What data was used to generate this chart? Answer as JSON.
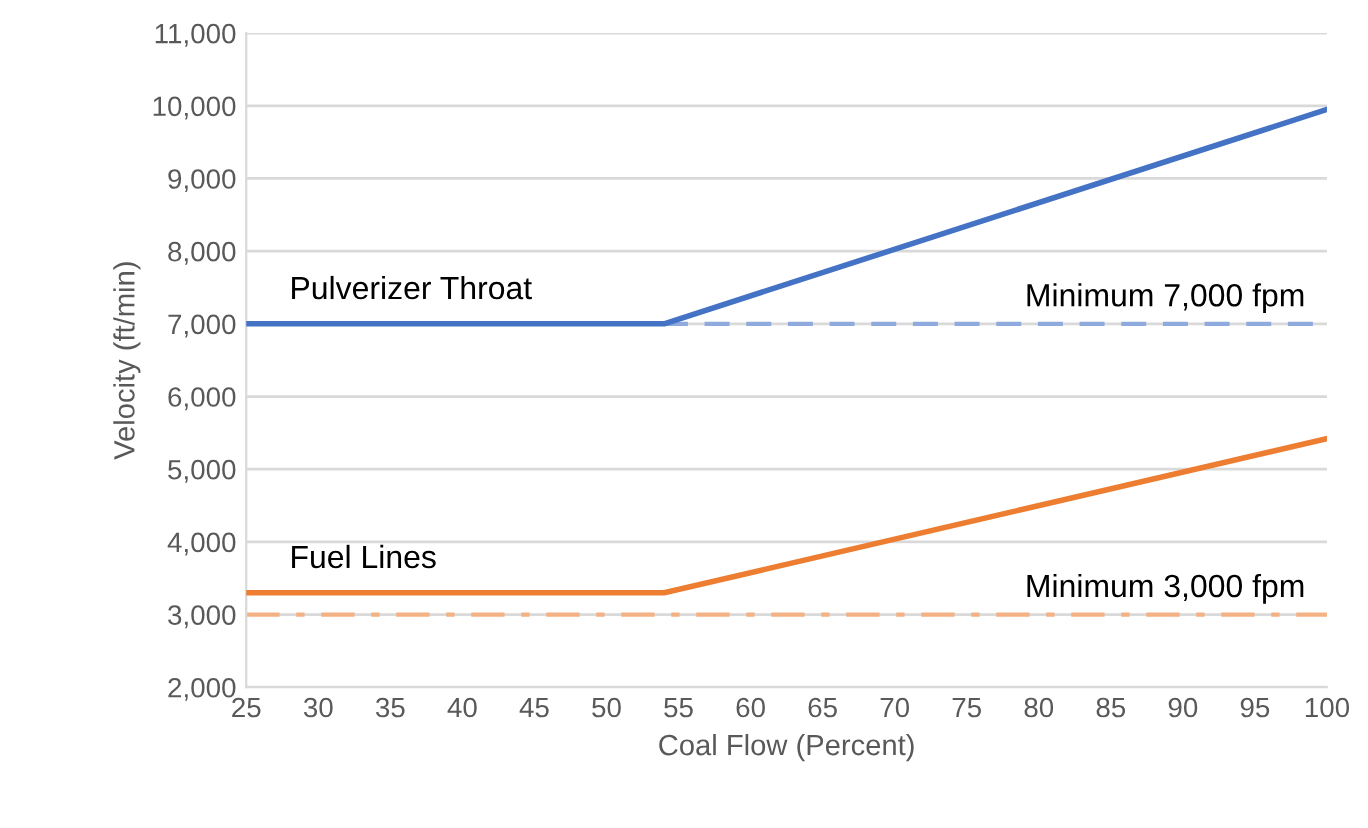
{
  "chart_data": {
    "type": "line",
    "xlabel": "Coal Flow (Percent)",
    "ylabel": "Velocity (ft/min)",
    "series": [
      {
        "name": "Pulverizer Throat",
        "color": "#4472c4",
        "x": [
          25,
          54,
          100
        ],
        "values": [
          7000,
          7000,
          9950
        ]
      },
      {
        "name": "Fuel Lines",
        "color": "#ed7d31",
        "x": [
          25,
          54,
          100
        ],
        "values": [
          3300,
          3300,
          5420
        ]
      }
    ],
    "ref_lines": [
      {
        "axis": "y",
        "value": 7000,
        "label": "Minimum 7,000 fpm",
        "color": "#8faadc",
        "line_style": "dashed"
      },
      {
        "axis": "y",
        "value": 3000,
        "label": "Minimum 3,000 fpm",
        "color": "#f4b183",
        "line_style": "dashdot"
      }
    ],
    "xlim": [
      25,
      100
    ],
    "xticks": [
      25,
      30,
      35,
      40,
      45,
      50,
      55,
      60,
      65,
      70,
      75,
      80,
      85,
      90,
      95,
      100
    ],
    "ylim": [
      2000,
      11000
    ],
    "yticks": [
      {
        "value": 2000,
        "label": "2,000"
      },
      {
        "value": 3000,
        "label": "3,000"
      },
      {
        "value": 4000,
        "label": "4,000"
      },
      {
        "value": 5000,
        "label": "5,000"
      },
      {
        "value": 6000,
        "label": "6,000"
      },
      {
        "value": 7000,
        "label": "7,000"
      },
      {
        "value": 8000,
        "label": "8,000"
      },
      {
        "value": 9000,
        "label": "9,000"
      },
      {
        "value": 10000,
        "label": "10,000"
      },
      {
        "value": 11000,
        "label": "11,000"
      }
    ],
    "grid": "y",
    "legend": false,
    "marker": "none",
    "line_style": "solid"
  }
}
